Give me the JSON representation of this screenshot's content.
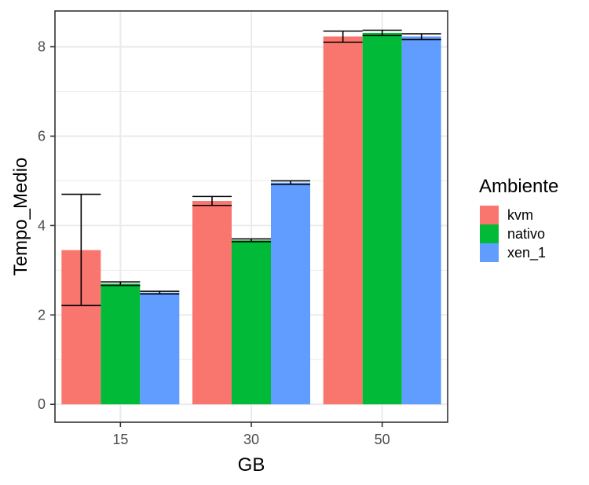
{
  "chart_data": {
    "type": "bar",
    "xlabel": "GB",
    "ylabel": "Tempo_Medio",
    "categories": [
      "15",
      "30",
      "50"
    ],
    "ylim": [
      -0.4,
      8.8
    ],
    "yticks": [
      0,
      2,
      4,
      6,
      8
    ],
    "yticks_labels": [
      "0",
      "2",
      "4",
      "6",
      "8"
    ],
    "grid": true,
    "legend": {
      "title": "Ambiente",
      "position": "right"
    },
    "series": [
      {
        "name": "kvm",
        "color": "#F8766D",
        "values": [
          3.45,
          4.55,
          8.23
        ],
        "error_low": [
          2.21,
          4.45,
          8.1
        ],
        "error_high": [
          4.7,
          4.65,
          8.35
        ]
      },
      {
        "name": "nativo",
        "color": "#00BA38",
        "values": [
          2.7,
          3.67,
          8.31
        ],
        "error_low": [
          2.66,
          3.64,
          8.25
        ],
        "error_high": [
          2.74,
          3.7,
          8.37
        ]
      },
      {
        "name": "xen_1",
        "color": "#619CFF",
        "values": [
          2.5,
          4.96,
          8.23
        ],
        "error_low": [
          2.47,
          4.92,
          8.16
        ],
        "error_high": [
          2.53,
          5.0,
          8.29
        ]
      }
    ]
  }
}
